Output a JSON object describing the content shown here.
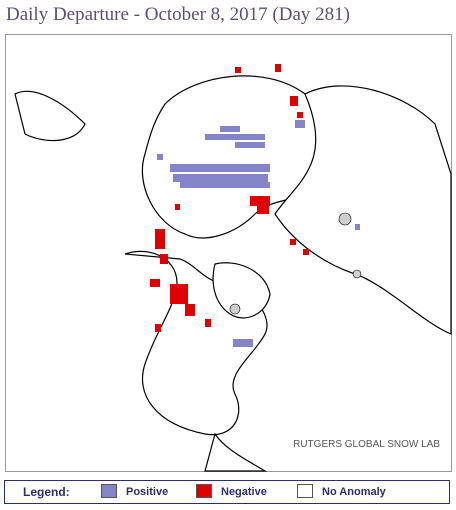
{
  "title": "Daily Departure - October 8, 2017 (Day 281)",
  "watermark": "RUTGERS GLOBAL SNOW LAB",
  "legend": {
    "label": "Legend:",
    "items": [
      {
        "name": "Positive",
        "color": "#8484c8"
      },
      {
        "name": "Negative",
        "color": "#e00000"
      },
      {
        "name": "No Anomaly",
        "color": "#ffffff"
      }
    ]
  }
}
